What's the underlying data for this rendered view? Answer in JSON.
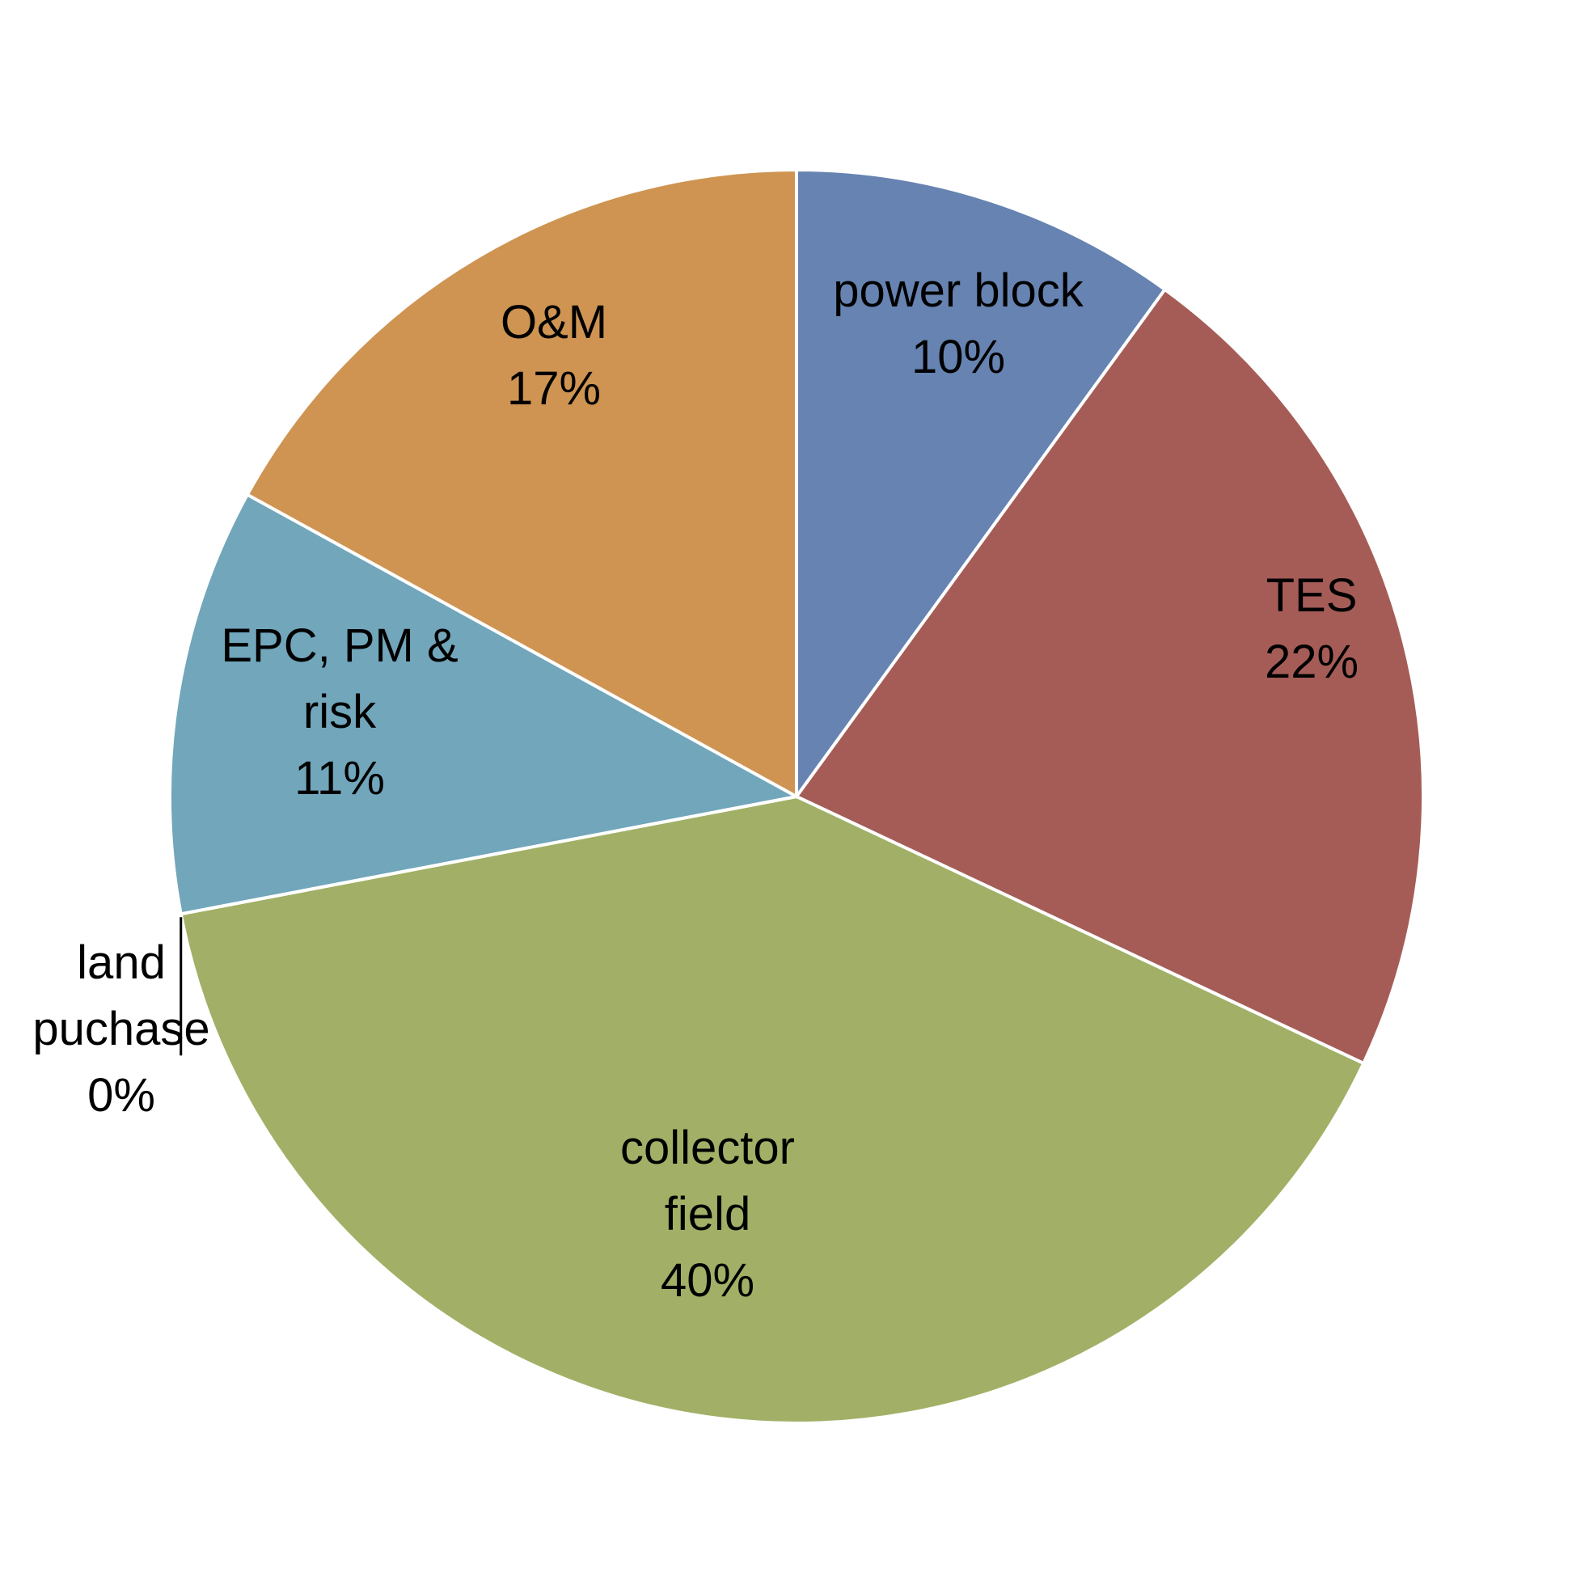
{
  "chart_data": {
    "type": "pie",
    "title": "",
    "slices": [
      {
        "label": [
          "power block"
        ],
        "value": 10,
        "pct": "10%",
        "color": "#6683b1"
      },
      {
        "label": [
          "TES"
        ],
        "value": 22,
        "pct": "22%",
        "color": "#a55c57"
      },
      {
        "label": [
          "collector",
          "field"
        ],
        "value": 40,
        "pct": "40%",
        "color": "#a1b066"
      },
      {
        "label": [
          "land",
          "puchase"
        ],
        "value": 0,
        "pct": "0%",
        "color": "#8064a2"
      },
      {
        "label": [
          "EPC, PM &",
          "risk"
        ],
        "value": 11,
        "pct": "11%",
        "color": "#71a6bb"
      },
      {
        "label": [
          "O&M"
        ],
        "value": 17,
        "pct": "17%",
        "color": "#cf9452"
      }
    ],
    "start_angle_deg": 0,
    "direction": "clockwise",
    "legend": "none",
    "data_labels": "inside"
  }
}
